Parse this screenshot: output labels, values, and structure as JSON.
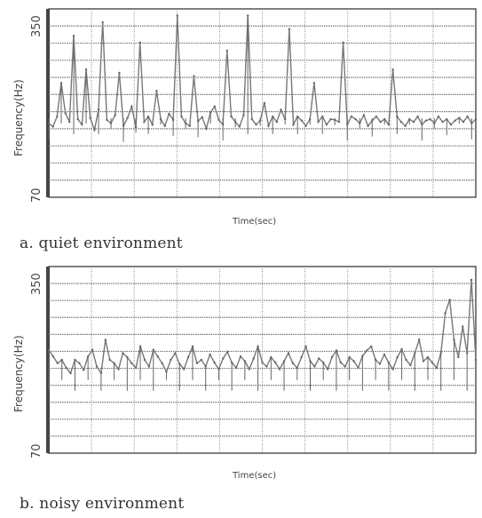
{
  "chart_data": [
    {
      "type": "line",
      "caption": "a. quiet environment",
      "xlabel": "Time(sec)",
      "ylabel": "Frequency(Hz)",
      "yticks": [
        "350",
        "70"
      ],
      "ylim": [
        70,
        350
      ],
      "grid": true,
      "series": [
        {
          "values": [
            180,
            175,
            190,
            240,
            195,
            182,
            310,
            186,
            178,
            260,
            188,
            170,
            200,
            330,
            185,
            180,
            192,
            255,
            176,
            188,
            205,
            174,
            300,
            182,
            190,
            178,
            228,
            186,
            176,
            194,
            185,
            340,
            190,
            180,
            176,
            250,
            183,
            189,
            172,
            196,
            205,
            185,
            178,
            288,
            190,
            182,
            175,
            192,
            340,
            186,
            178,
            184,
            210,
            176,
            190,
            182,
            200,
            186,
            320,
            178,
            190,
            184,
            176,
            186,
            240,
            182,
            190,
            178,
            186,
            185,
            182,
            300,
            178,
            190,
            186,
            180,
            192,
            176,
            184,
            190,
            182,
            186,
            178,
            260,
            190,
            182,
            176,
            186,
            182,
            190,
            178,
            184,
            186,
            180,
            190,
            182,
            186,
            178,
            184,
            188,
            182,
            190,
            180,
            186
          ]
        }
      ]
    },
    {
      "type": "line",
      "caption": "b. noisy environment",
      "xlabel": "Time(sec)",
      "ylabel": "Frequency(Hz)",
      "yticks": [
        "350",
        "70"
      ],
      "ylim": [
        70,
        350
      ],
      "grid": true,
      "series": [
        {
          "values": [
            225,
            215,
            205,
            210,
            198,
            190,
            210,
            205,
            195,
            215,
            225,
            200,
            190,
            240,
            210,
            205,
            196,
            220,
            214,
            205,
            198,
            230,
            210,
            200,
            225,
            215,
            205,
            192,
            210,
            220,
            204,
            196,
            214,
            230,
            205,
            210,
            200,
            218,
            206,
            196,
            212,
            222,
            206,
            198,
            215,
            208,
            196,
            212,
            230,
            206,
            200,
            214,
            206,
            196,
            208,
            220,
            205,
            198,
            214,
            230,
            208,
            200,
            212,
            206,
            196,
            214,
            224,
            206,
            200,
            214,
            208,
            198,
            216,
            224,
            230,
            210,
            204,
            218,
            206,
            196,
            214,
            226,
            210,
            202,
            220,
            240,
            208,
            214,
            206,
            198,
            220,
            280,
            300,
            240,
            214,
            260,
            220,
            330,
            210
          ]
        }
      ]
    }
  ]
}
